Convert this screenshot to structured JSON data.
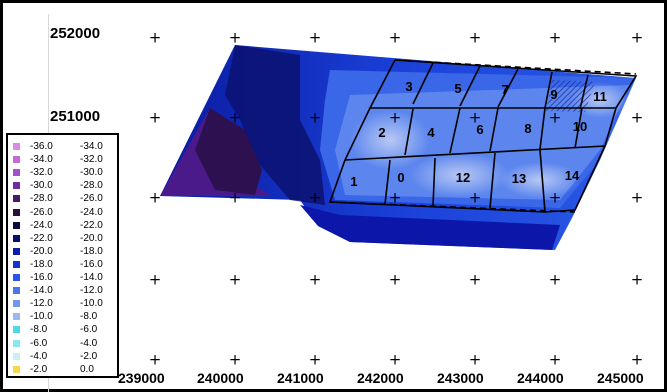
{
  "map": {
    "y_ticks": [
      "252000",
      "251000"
    ],
    "x_ticks": [
      "239000",
      "240000",
      "241000",
      "242000",
      "243000",
      "244000",
      "245000"
    ],
    "panels": [
      {
        "label": "3"
      },
      {
        "label": "5"
      },
      {
        "label": "7"
      },
      {
        "label": "9"
      },
      {
        "label": "11"
      },
      {
        "label": "2"
      },
      {
        "label": "4"
      },
      {
        "label": "6"
      },
      {
        "label": "8"
      },
      {
        "label": "10"
      },
      {
        "label": "1"
      },
      {
        "label": "0"
      },
      {
        "label": "12"
      },
      {
        "label": "13"
      },
      {
        "label": "14"
      }
    ]
  },
  "legend": {
    "rows": [
      {
        "lo": "-36.0",
        "hi": "-34.0",
        "color": "#d98ce0"
      },
      {
        "lo": "-34.0",
        "hi": "-32.0",
        "color": "#c56ad6"
      },
      {
        "lo": "-32.0",
        "hi": "-30.0",
        "color": "#a44fcf"
      },
      {
        "lo": "-30.0",
        "hi": "-28.0",
        "color": "#6f2aa8"
      },
      {
        "lo": "-28.0",
        "hi": "-26.0",
        "color": "#4a1a6a"
      },
      {
        "lo": "-26.0",
        "hi": "-24.0",
        "color": "#2a0f3a"
      },
      {
        "lo": "-24.0",
        "hi": "-22.0",
        "color": "#0b0b3d"
      },
      {
        "lo": "-22.0",
        "hi": "-20.0",
        "color": "#06106b"
      },
      {
        "lo": "-20.0",
        "hi": "-18.0",
        "color": "#0a1ea8"
      },
      {
        "lo": "-18.0",
        "hi": "-16.0",
        "color": "#1432d4"
      },
      {
        "lo": "-16.0",
        "hi": "-14.0",
        "color": "#2a55e6"
      },
      {
        "lo": "-14.0",
        "hi": "-12.0",
        "color": "#4a76ec"
      },
      {
        "lo": "-12.0",
        "hi": "-10.0",
        "color": "#7297f0"
      },
      {
        "lo": "-10.0",
        "hi": "-8.0",
        "color": "#9bb8f2"
      },
      {
        "lo": "-8.0",
        "hi": "-6.0",
        "color": "#4fd8e0"
      },
      {
        "lo": "-6.0",
        "hi": "-4.0",
        "color": "#8ae8ec"
      },
      {
        "lo": "-4.0",
        "hi": "-2.0",
        "color": "#c6f2f2"
      },
      {
        "lo": "-2.0",
        "hi": "0.0",
        "color": "#f4d84a"
      }
    ]
  }
}
